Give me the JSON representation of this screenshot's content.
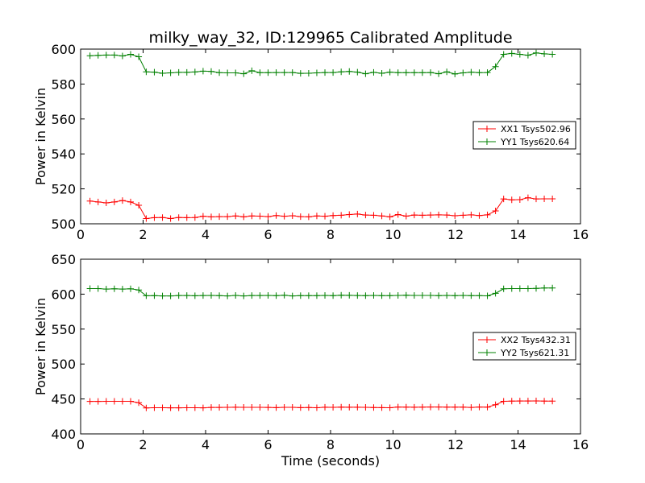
{
  "title": "milky_way_32, ID:129965 Calibrated Amplitude",
  "xlabel": "Time (seconds)",
  "chart_data": [
    {
      "type": "line",
      "ylabel": "Power in Kelvin",
      "xlim": [
        0,
        16
      ],
      "ylim": [
        500,
        600
      ],
      "xticks": [
        "0",
        "2",
        "4",
        "6",
        "8",
        "10",
        "12",
        "14",
        "16"
      ],
      "yticks": [
        "500",
        "520",
        "540",
        "560",
        "580",
        "600"
      ],
      "legend_position": "right",
      "series": [
        {
          "name": "XX1 Tsys502.96",
          "color": "#ff0000",
          "x": [
            0.3,
            0.56,
            0.82,
            1.08,
            1.34,
            1.6,
            1.86,
            2.1,
            2.36,
            2.62,
            2.88,
            3.14,
            3.4,
            3.66,
            3.92,
            4.18,
            4.44,
            4.7,
            4.96,
            5.22,
            5.48,
            5.74,
            6.0,
            6.26,
            6.52,
            6.78,
            7.04,
            7.3,
            7.56,
            7.82,
            8.08,
            8.34,
            8.6,
            8.86,
            9.12,
            9.38,
            9.64,
            9.9,
            10.16,
            10.42,
            10.68,
            10.94,
            11.2,
            11.46,
            11.72,
            11.98,
            12.24,
            12.5,
            12.76,
            13.02,
            13.28,
            13.54,
            13.8,
            14.06,
            14.32,
            14.58,
            14.84,
            15.1
          ],
          "y": [
            513,
            512.5,
            512,
            512.5,
            513.3,
            512.5,
            510.6,
            503,
            503.5,
            503.6,
            503,
            503.6,
            503.5,
            503.6,
            504.3,
            504,
            504.1,
            504.1,
            504.5,
            504,
            504.5,
            504.4,
            504.1,
            504.7,
            504.3,
            504.6,
            504.1,
            504,
            504.5,
            504.3,
            504.7,
            504.9,
            505.3,
            505.6,
            505,
            504.9,
            504.5,
            504,
            505.3,
            504.4,
            505,
            504.9,
            505,
            505.1,
            505,
            504.6,
            504.9,
            505.1,
            504.7,
            505.1,
            507.4,
            514.2,
            513.7,
            513.8,
            514.9,
            514.2,
            514.3,
            514.3
          ]
        },
        {
          "name": "YY1 Tsys620.64",
          "color": "#008000",
          "x": [
            0.3,
            0.56,
            0.82,
            1.08,
            1.34,
            1.6,
            1.86,
            2.1,
            2.36,
            2.62,
            2.88,
            3.14,
            3.4,
            3.66,
            3.92,
            4.18,
            4.44,
            4.7,
            4.96,
            5.22,
            5.48,
            5.74,
            6.0,
            6.26,
            6.52,
            6.78,
            7.04,
            7.3,
            7.56,
            7.82,
            8.08,
            8.34,
            8.6,
            8.86,
            9.12,
            9.38,
            9.64,
            9.9,
            10.16,
            10.42,
            10.68,
            10.94,
            11.2,
            11.46,
            11.72,
            11.98,
            12.24,
            12.5,
            12.76,
            13.02,
            13.28,
            13.54,
            13.8,
            14.06,
            14.32,
            14.58,
            14.84,
            15.1
          ],
          "y": [
            596.2,
            596.4,
            596.6,
            596.6,
            596.1,
            597,
            595.6,
            587,
            586.8,
            586.2,
            586.4,
            586.7,
            586.7,
            586.9,
            587.4,
            587.2,
            586.5,
            586.4,
            586.4,
            585.9,
            587.6,
            586.5,
            586.5,
            586.6,
            586.6,
            586.6,
            586.1,
            586.2,
            586.4,
            586.6,
            586.6,
            587,
            587.2,
            586.8,
            585.9,
            586.7,
            586.2,
            586.8,
            586.5,
            586.5,
            586.5,
            586.5,
            586.6,
            585.9,
            587,
            585.8,
            586.4,
            586.8,
            586.5,
            586.6,
            590,
            597,
            597.5,
            597,
            596.5,
            597.8,
            597.3,
            597
          ]
        }
      ]
    },
    {
      "type": "line",
      "ylabel": "Power in Kelvin",
      "xlim": [
        0,
        16
      ],
      "ylim": [
        400,
        650
      ],
      "xticks": [
        "0",
        "2",
        "4",
        "6",
        "8",
        "10",
        "12",
        "14",
        "16"
      ],
      "yticks": [
        "400",
        "450",
        "500",
        "550",
        "600",
        "650"
      ],
      "legend_position": "right",
      "series": [
        {
          "name": "XX2 Tsys432.31",
          "color": "#ff0000",
          "x": [
            0.3,
            0.56,
            0.82,
            1.08,
            1.34,
            1.6,
            1.86,
            2.1,
            2.36,
            2.62,
            2.88,
            3.14,
            3.4,
            3.66,
            3.92,
            4.18,
            4.44,
            4.7,
            4.96,
            5.22,
            5.48,
            5.74,
            6.0,
            6.26,
            6.52,
            6.78,
            7.04,
            7.3,
            7.56,
            7.82,
            8.08,
            8.34,
            8.6,
            8.86,
            9.12,
            9.38,
            9.64,
            9.9,
            10.16,
            10.42,
            10.68,
            10.94,
            11.2,
            11.46,
            11.72,
            11.98,
            12.24,
            12.5,
            12.76,
            13.02,
            13.28,
            13.54,
            13.8,
            14.06,
            14.32,
            14.58,
            14.84,
            15.1
          ],
          "y": [
            446.5,
            446.5,
            446.6,
            446.6,
            446.7,
            446.6,
            444.6,
            437.2,
            437.4,
            437.4,
            437.3,
            437.3,
            437.5,
            437.4,
            437.3,
            437.9,
            437.9,
            438,
            438.1,
            438,
            438,
            438,
            437.9,
            437.6,
            438,
            438,
            437.6,
            437.8,
            437.5,
            438.2,
            438,
            438.3,
            438.1,
            438.2,
            438,
            437.8,
            437.6,
            437.5,
            438.4,
            438.3,
            438.2,
            438.3,
            438.4,
            438.4,
            438.3,
            438.3,
            438.3,
            437.9,
            438.5,
            438.3,
            441.7,
            446.6,
            447,
            447.1,
            447.1,
            447.2,
            447,
            447
          ]
        },
        {
          "name": "YY2 Tsys621.31",
          "color": "#008000",
          "x": [
            0.3,
            0.56,
            0.82,
            1.08,
            1.34,
            1.6,
            1.86,
            2.1,
            2.36,
            2.62,
            2.88,
            3.14,
            3.4,
            3.66,
            3.92,
            4.18,
            4.44,
            4.7,
            4.96,
            5.22,
            5.48,
            5.74,
            6.0,
            6.26,
            6.52,
            6.78,
            7.04,
            7.3,
            7.56,
            7.82,
            8.08,
            8.34,
            8.6,
            8.86,
            9.12,
            9.38,
            9.64,
            9.9,
            10.16,
            10.42,
            10.68,
            10.94,
            11.2,
            11.46,
            11.72,
            11.98,
            12.24,
            12.5,
            12.76,
            13.02,
            13.28,
            13.54,
            13.8,
            14.06,
            14.32,
            14.58,
            14.84,
            15.1
          ],
          "y": [
            608,
            607.9,
            607.3,
            607.6,
            607.3,
            607.7,
            606,
            597.7,
            597.8,
            597.5,
            597.4,
            598,
            598,
            597.7,
            598,
            598.1,
            597.8,
            597.4,
            598.2,
            597.4,
            598,
            598,
            598.1,
            597.8,
            598.4,
            597.4,
            597.8,
            597.8,
            597.8,
            598.1,
            597.9,
            598.4,
            598.3,
            598,
            597.8,
            598.1,
            597.8,
            597.8,
            598.1,
            598.4,
            598.1,
            598.2,
            598.1,
            597.8,
            598.1,
            597.9,
            598.2,
            597.9,
            597.8,
            597.6,
            601.2,
            607.6,
            608,
            607.9,
            607.9,
            608.2,
            608.8,
            608.8
          ]
        }
      ]
    }
  ]
}
